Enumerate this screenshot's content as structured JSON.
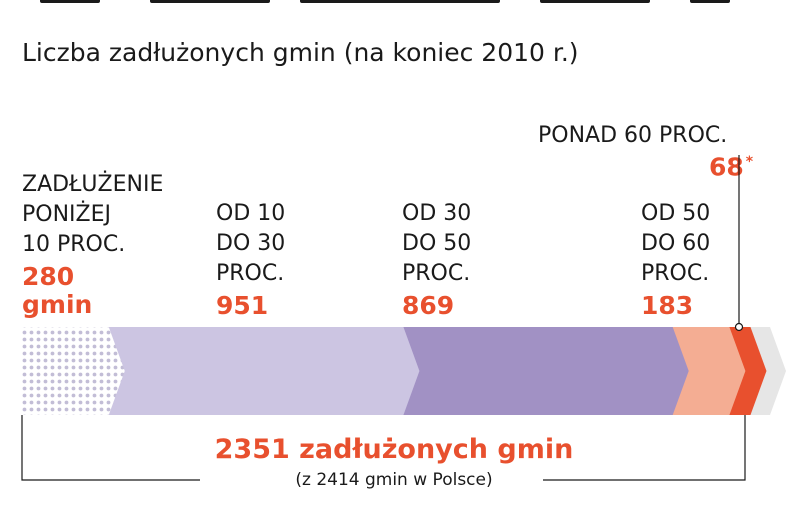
{
  "title": "Liczba zadłużonych gmin (na koniec 2010 r.)",
  "chart_data": {
    "type": "bar",
    "categories": [
      "ZADŁUŻENIE PONIŻEJ 10 PROC.",
      "OD 10 DO 30 PROC.",
      "OD 30 DO 50 PROC.",
      "OD 50 DO 60 PROC.",
      "PONAD 60 PROC."
    ],
    "values": [
      280,
      951,
      869,
      183,
      68
    ],
    "value_labels": [
      "280 gmin",
      "951",
      "869",
      "183",
      "68"
    ],
    "asterisk": "*",
    "total_label": "2351 zadłużonych gmin",
    "subtotal_label": "(z 2414 gmin w Polsce)",
    "colors": {
      "seg1": "#d4d0e4",
      "seg2": "#ccc5e2",
      "seg3": "#a191c4",
      "seg4": "#f4ad93",
      "seg5": "#e8502e",
      "rest": "#e6e6e6",
      "accent": "#e8502e"
    }
  },
  "labels": {
    "seg1": [
      "ZADŁUŻENIE",
      "PONIŻEJ",
      "10 PROC."
    ],
    "seg2": [
      "OD 10",
      "DO 30",
      "PROC."
    ],
    "seg3": [
      "OD 30",
      "DO 50",
      "PROC."
    ],
    "seg4": [
      "OD 50",
      "DO 60",
      "PROC."
    ],
    "seg5": [
      "PONAD 60 PROC."
    ]
  },
  "values": {
    "seg1a": "280",
    "seg1b": "gmin",
    "seg2": "951",
    "seg3": "869",
    "seg4": "183",
    "seg5": "68"
  }
}
